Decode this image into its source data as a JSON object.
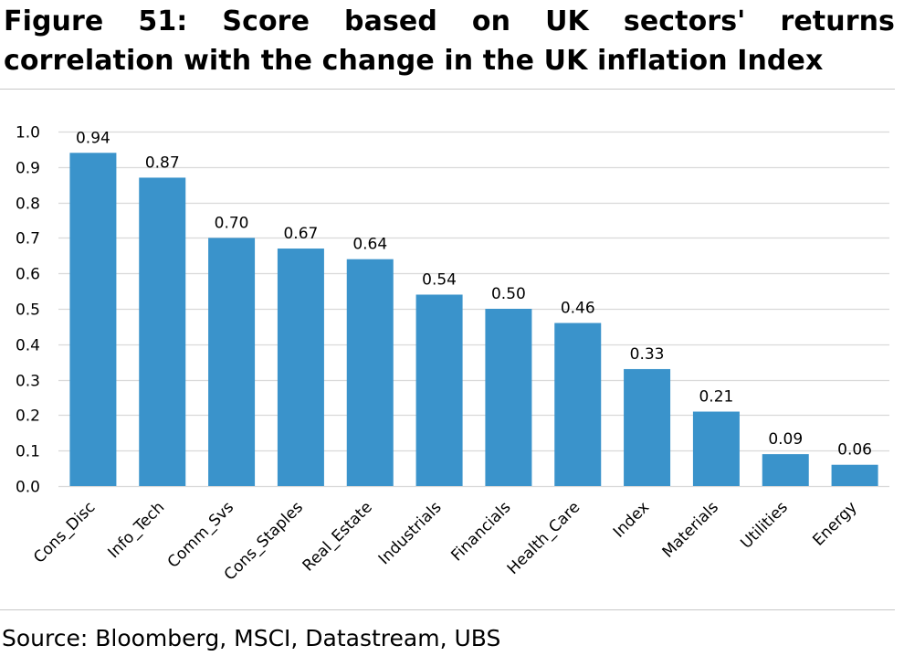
{
  "header": {
    "title": "Figure 51: Score based on UK sectors' returns correlation with the change in the UK inflation Index"
  },
  "footer": {
    "source": "Source: Bloomberg, MSCI, Datastream, UBS"
  },
  "colors": {
    "bar": "#3a93cb",
    "grid": "#d9d9d9",
    "rule": "#c8c8c8"
  },
  "chart_data": {
    "type": "bar",
    "title": "",
    "xlabel": "",
    "ylabel": "",
    "categories": [
      "Cons_Disc",
      "Info_Tech",
      "Comm_Svs",
      "Cons_Staples",
      "Real_Estate",
      "Industrials",
      "Financials",
      "Health_Care",
      "Index",
      "Materials",
      "Utilities",
      "Energy"
    ],
    "values": [
      0.94,
      0.87,
      0.7,
      0.67,
      0.64,
      0.54,
      0.5,
      0.46,
      0.33,
      0.21,
      0.09,
      0.06
    ],
    "data_labels": [
      "0.94",
      "0.87",
      "0.70",
      "0.67",
      "0.64",
      "0.54",
      "0.50",
      "0.46",
      "0.33",
      "0.21",
      "0.09",
      "0.06"
    ],
    "ylim": [
      0,
      1.0
    ],
    "yticks": [
      0.0,
      0.1,
      0.2,
      0.3,
      0.4,
      0.5,
      0.6,
      0.7,
      0.8,
      0.9,
      1.0
    ],
    "ytick_labels": [
      "0.0",
      "0.1",
      "0.2",
      "0.3",
      "0.4",
      "0.5",
      "0.6",
      "0.7",
      "0.8",
      "0.9",
      "1.0"
    ],
    "grid": true,
    "legend": "none"
  }
}
